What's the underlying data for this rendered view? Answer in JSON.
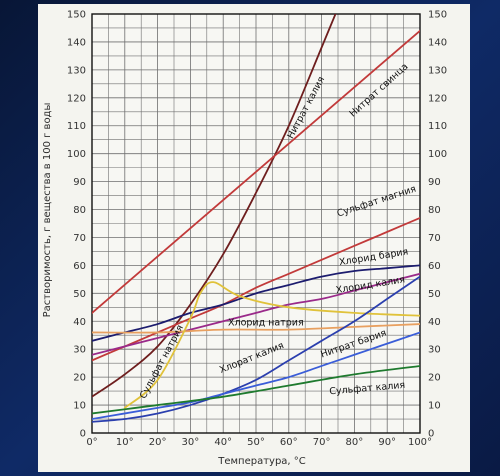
{
  "chart_data": {
    "type": "line",
    "title": "",
    "xlabel": "Температура, °С",
    "ylabel": "Растворимость, г вещества в 100 г воды",
    "xlim": [
      0,
      100
    ],
    "ylim": [
      0,
      150
    ],
    "grid": true,
    "x_ticks": [
      "0°",
      "10°",
      "20°",
      "30°",
      "40°",
      "50°",
      "60°",
      "70°",
      "80°",
      "90°",
      "100°"
    ],
    "y_ticks": [
      0,
      10,
      20,
      30,
      40,
      50,
      60,
      70,
      80,
      90,
      100,
      110,
      120,
      130,
      140,
      150
    ],
    "colors": {
      "background": "#0b1d4a",
      "plot_bg": "#f7f7f3",
      "grid": "#6f6f6f",
      "frame": "#111111"
    },
    "series": [
      {
        "name": "Нитрат калия",
        "color": "#6e1e1e",
        "x": [
          0,
          10,
          20,
          30,
          40,
          50,
          60,
          70,
          76
        ],
        "y": [
          13,
          21,
          31,
          46,
          64,
          86,
          110,
          138,
          155
        ]
      },
      {
        "name": "Нитрат свинца",
        "color": "#c23a3a",
        "x": [
          0,
          100
        ],
        "y": [
          43,
          144
        ]
      },
      {
        "name": "Сульфат магния",
        "color": "#c23a3a",
        "x": [
          0,
          10,
          20,
          30,
          40,
          50,
          60,
          70,
          80,
          90,
          100
        ],
        "y": [
          26,
          31,
          36,
          41,
          46,
          52,
          57,
          62,
          67,
          72,
          77
        ]
      },
      {
        "name": "Хлорид бария",
        "color": "#1c1c6e",
        "x": [
          0,
          10,
          20,
          30,
          40,
          50,
          60,
          70,
          80,
          90,
          100
        ],
        "y": [
          33,
          36,
          39,
          43,
          46,
          50,
          53,
          56,
          58,
          59,
          60
        ]
      },
      {
        "name": "Хлорид калия",
        "color": "#9a2a8a",
        "x": [
          0,
          10,
          20,
          30,
          40,
          50,
          60,
          70,
          80,
          90,
          100
        ],
        "y": [
          28,
          31,
          34,
          37,
          40,
          43,
          46,
          48,
          51,
          54,
          57
        ]
      },
      {
        "name": "Хлорид натрия",
        "color": "#e8a060",
        "x": [
          0,
          20,
          40,
          60,
          80,
          100
        ],
        "y": [
          36,
          36,
          37,
          37,
          38,
          39
        ]
      },
      {
        "name": "Сульфат натрия",
        "color": "#e0c23a",
        "x": [
          10,
          20,
          30,
          33,
          37,
          45,
          60,
          80,
          100
        ],
        "y": [
          9,
          19,
          41,
          50,
          54,
          49,
          45,
          43,
          42
        ]
      },
      {
        "name": "Хлорат калия",
        "color": "#2b3fae",
        "x": [
          0,
          10,
          20,
          30,
          40,
          50,
          60,
          70,
          80,
          90,
          100
        ],
        "y": [
          4,
          5,
          7,
          10,
          14,
          19,
          26,
          33,
          40,
          48,
          56
        ]
      },
      {
        "name": "Нитрат бария",
        "color": "#3a5dd8",
        "x": [
          0,
          10,
          20,
          30,
          40,
          50,
          60,
          70,
          80,
          90,
          100
        ],
        "y": [
          5,
          7,
          9,
          11,
          14,
          17,
          20,
          24,
          28,
          32,
          36
        ]
      },
      {
        "name": "Сульфат калия",
        "color": "#1e7a2e",
        "x": [
          0,
          20,
          40,
          60,
          80,
          100
        ],
        "y": [
          7,
          10,
          13,
          17,
          21,
          24
        ]
      }
    ]
  }
}
